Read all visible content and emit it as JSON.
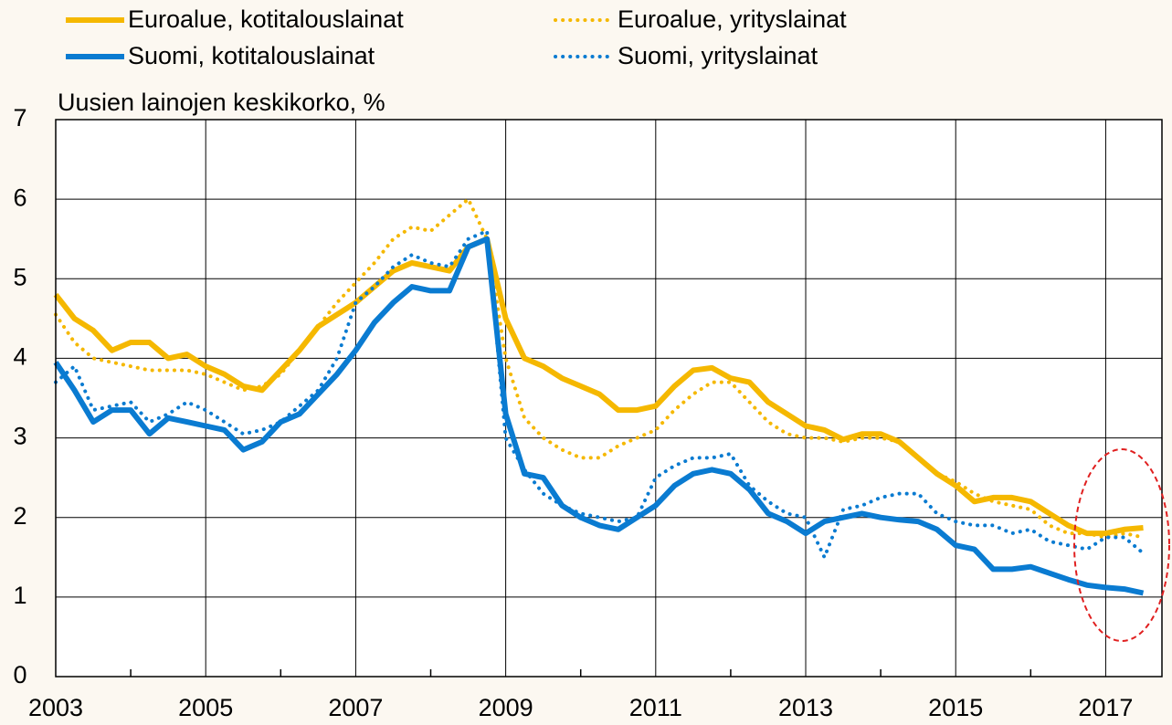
{
  "chart_data": {
    "type": "line",
    "y_axis_label": "Uusien lainojen keskikorko, %",
    "x": [
      2003,
      2003.25,
      2003.5,
      2003.75,
      2004,
      2004.25,
      2004.5,
      2004.75,
      2005,
      2005.25,
      2005.5,
      2005.75,
      2006,
      2006.25,
      2006.5,
      2006.75,
      2007,
      2007.25,
      2007.5,
      2007.75,
      2008,
      2008.25,
      2008.5,
      2008.75,
      2009,
      2009.25,
      2009.5,
      2009.75,
      2010,
      2010.25,
      2010.5,
      2010.75,
      2011,
      2011.25,
      2011.5,
      2011.75,
      2012,
      2012.25,
      2012.5,
      2012.75,
      2013,
      2013.25,
      2013.5,
      2013.75,
      2014,
      2014.25,
      2014.5,
      2014.75,
      2015,
      2015.25,
      2015.5,
      2015.75,
      2016,
      2016.25,
      2016.5,
      2016.75,
      2017,
      2017.25,
      2017.5
    ],
    "series": [
      {
        "name": "Euroalue, kotitalouslainat",
        "color": "#f5b800",
        "style": "solid",
        "values": [
          4.8,
          4.5,
          4.35,
          4.1,
          4.2,
          4.2,
          4.0,
          4.05,
          3.9,
          3.8,
          3.65,
          3.6,
          3.85,
          4.1,
          4.4,
          4.55,
          4.7,
          4.9,
          5.1,
          5.2,
          5.15,
          5.1,
          5.4,
          5.5,
          4.5,
          4.0,
          3.9,
          3.75,
          3.65,
          3.55,
          3.35,
          3.35,
          3.4,
          3.65,
          3.85,
          3.88,
          3.75,
          3.7,
          3.45,
          3.3,
          3.15,
          3.1,
          2.98,
          3.05,
          3.05,
          2.95,
          2.75,
          2.55,
          2.4,
          2.2,
          2.25,
          2.25,
          2.2,
          2.05,
          1.9,
          1.8,
          1.8,
          1.85,
          1.87
        ]
      },
      {
        "name": "Euroalue, yrityslainat",
        "color": "#f5b800",
        "style": "dotted",
        "values": [
          4.55,
          4.2,
          4.0,
          3.95,
          3.9,
          3.85,
          3.85,
          3.85,
          3.8,
          3.7,
          3.6,
          3.65,
          3.8,
          4.1,
          4.4,
          4.7,
          4.95,
          5.2,
          5.5,
          5.65,
          5.6,
          5.8,
          6.0,
          5.5,
          4.0,
          3.25,
          3.0,
          2.85,
          2.75,
          2.75,
          2.9,
          3.0,
          3.1,
          3.35,
          3.55,
          3.7,
          3.7,
          3.45,
          3.2,
          3.05,
          3.0,
          3.0,
          2.95,
          3.0,
          3.0,
          2.95,
          2.75,
          2.55,
          2.45,
          2.3,
          2.2,
          2.15,
          2.1,
          1.9,
          1.8,
          1.8,
          1.75,
          1.8,
          1.75
        ]
      },
      {
        "name": "Suomi, kotitalouslainat",
        "color": "#0a7bd1",
        "style": "solid",
        "values": [
          3.95,
          3.6,
          3.2,
          3.35,
          3.35,
          3.05,
          3.25,
          3.2,
          3.15,
          3.1,
          2.85,
          2.95,
          3.2,
          3.3,
          3.55,
          3.8,
          4.1,
          4.45,
          4.7,
          4.9,
          4.85,
          4.85,
          5.4,
          5.5,
          3.3,
          2.55,
          2.5,
          2.15,
          2.0,
          1.9,
          1.85,
          2.0,
          2.15,
          2.4,
          2.55,
          2.6,
          2.55,
          2.35,
          2.05,
          1.95,
          1.8,
          1.95,
          2.0,
          2.05,
          2.0,
          1.97,
          1.95,
          1.85,
          1.65,
          1.6,
          1.35,
          1.35,
          1.38,
          1.3,
          1.22,
          1.15,
          1.12,
          1.1,
          1.05
        ]
      },
      {
        "name": "Suomi, yrityslainat",
        "color": "#0a7bd1",
        "style": "dotted",
        "values": [
          3.7,
          3.9,
          3.35,
          3.4,
          3.45,
          3.2,
          3.3,
          3.45,
          3.35,
          3.2,
          3.05,
          3.1,
          3.2,
          3.4,
          3.6,
          4.0,
          4.7,
          4.9,
          5.15,
          5.3,
          5.2,
          5.15,
          5.5,
          5.6,
          3.0,
          2.6,
          2.3,
          2.15,
          2.05,
          2.0,
          1.95,
          2.0,
          2.5,
          2.65,
          2.75,
          2.75,
          2.8,
          2.4,
          2.2,
          2.05,
          2.0,
          1.5,
          2.1,
          2.15,
          2.25,
          2.3,
          2.3,
          2.05,
          1.95,
          1.9,
          1.9,
          1.8,
          1.85,
          1.7,
          1.65,
          1.6,
          1.75,
          1.75,
          1.55
        ]
      }
    ],
    "xlim": [
      2003,
      2017.75
    ],
    "xticks": [
      2003,
      2005,
      2007,
      2009,
      2011,
      2013,
      2015,
      2017
    ],
    "xminorticks": [
      2004,
      2006,
      2008,
      2010,
      2012,
      2014,
      2016
    ],
    "ylim": [
      0,
      7
    ],
    "yticks": [
      0,
      1,
      2,
      3,
      4,
      5,
      6,
      7
    ],
    "grid": true
  }
}
